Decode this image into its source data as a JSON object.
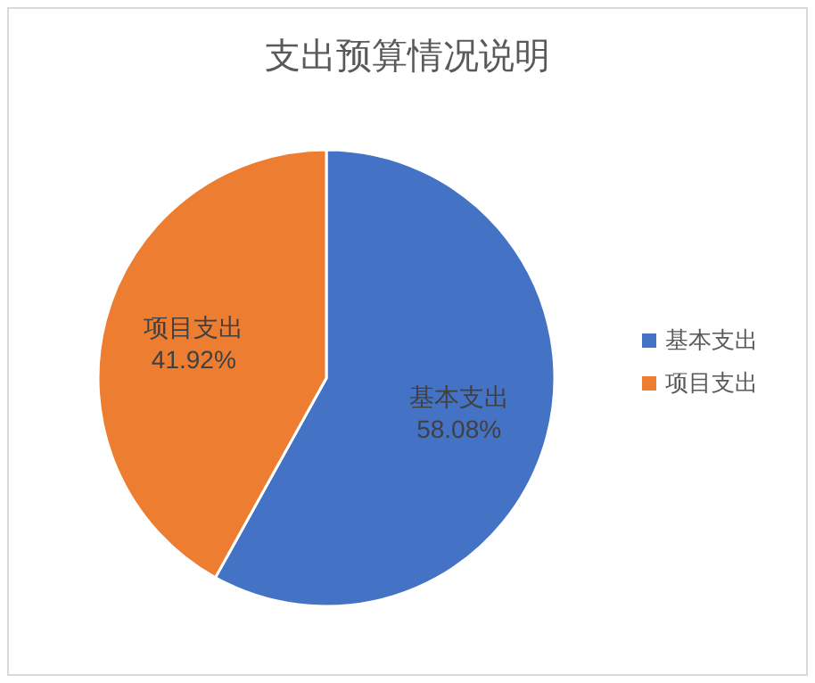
{
  "chart_data": {
    "type": "pie",
    "title": "支出预算情况说明",
    "categories": [
      "基本支出",
      "项目支出"
    ],
    "values": [
      58.08,
      41.92
    ],
    "colors": [
      "#4472c4",
      "#ed7d31"
    ],
    "value_labels": [
      "58.08%",
      "41.92%"
    ],
    "legend": "right"
  }
}
